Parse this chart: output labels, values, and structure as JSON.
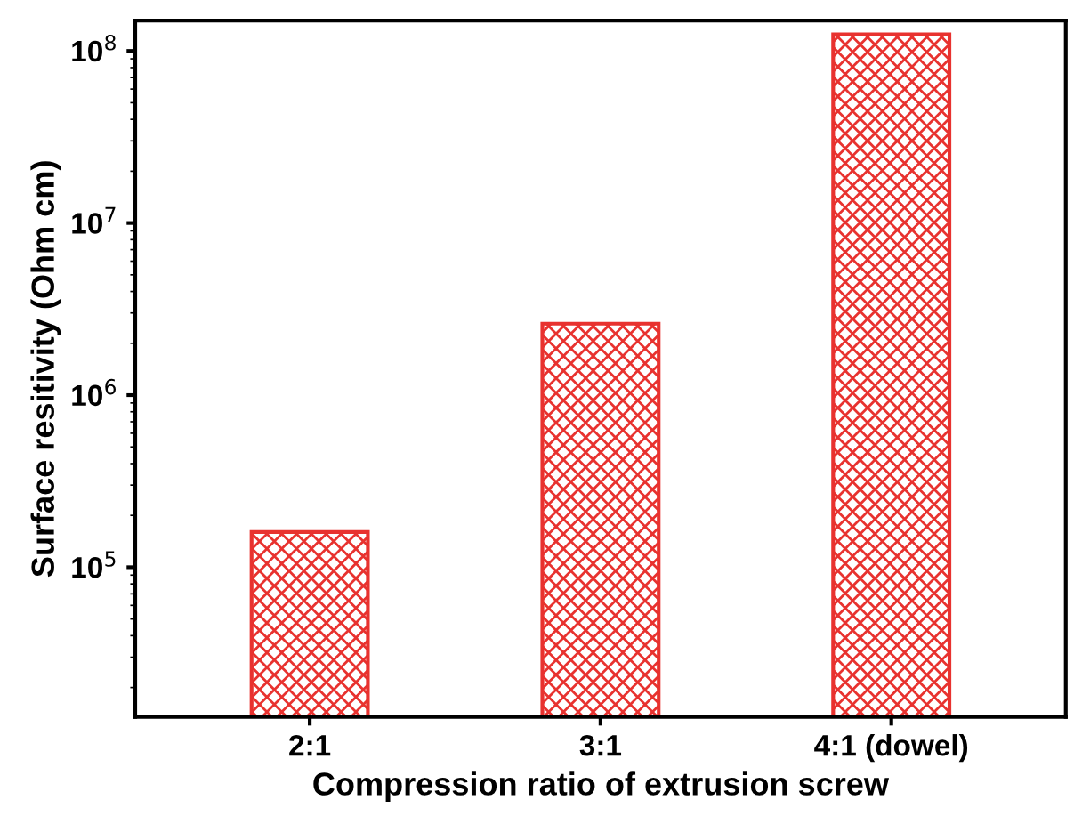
{
  "chart_data": {
    "type": "bar",
    "xlabel": "Compression ratio of extrusion screw",
    "ylabel": "Surface resitivity (Ohm cm)",
    "categories": [
      "2:1",
      "3:1",
      "4:1 (dowel)"
    ],
    "values": [
      160000,
      2600000,
      125000000
    ],
    "color": "#e8322f",
    "log": "y",
    "ylim": [
      13500,
      150000000
    ],
    "yticks": [
      {
        "value": 100000,
        "label": "10$^{5}$"
      },
      {
        "value": 1000000,
        "label": "10$^{6}$"
      },
      {
        "value": 10000000,
        "label": "10$^{7}$"
      },
      {
        "value": 100000000,
        "label": "10$^{8}$"
      }
    ],
    "grid": false,
    "legend": false
  }
}
